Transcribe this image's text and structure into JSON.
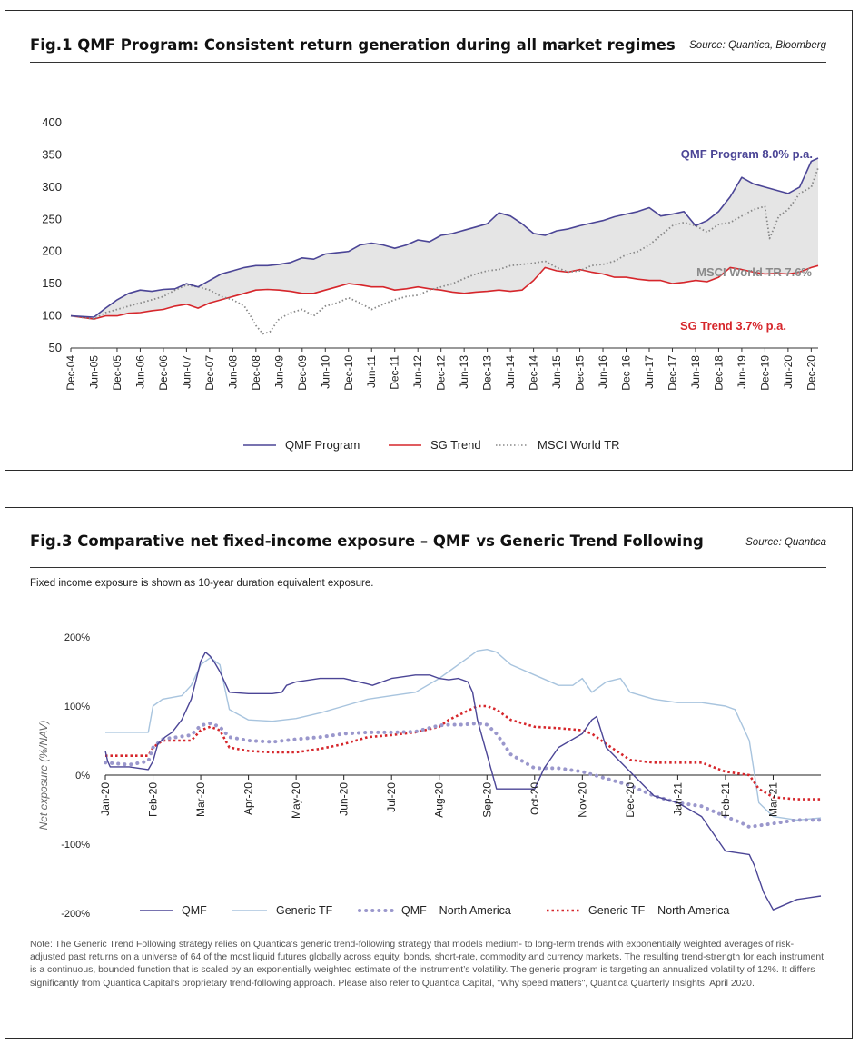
{
  "figures": [
    {
      "title": "Fig.1  QMF Program: Consistent return generation during all market regimes",
      "source": "Source: Quantica, Bloomberg"
    },
    {
      "title": "Fig.3  Comparative net fixed-income exposure – QMF vs Generic Trend Following",
      "source": "Source: Quantica",
      "subtitle": "Fixed income exposure is shown as 10-year duration equivalent exposure.",
      "note": "Note: The Generic Trend Following strategy relies on Quantica’s generic trend-following strategy that models medium- to long-term trends with exponentially weighted averages of risk-adjusted past returns on a universe of 64 of the most liquid futures globally across equity, bonds, short-rate, commodity and currency markets. The resulting trend-strength for each instrument is a continuous, bounded function that is scaled by an exponentially weighted estimate of the instrument’s volatility. The generic program is targeting an annualized volatility of 12%. It differs significantly from Quantica Capital’s proprietary trend-following approach. Please also refer to Quantica Capital, \"Why speed matters\", Quantica Quarterly Insights, April 2020."
    }
  ],
  "chart_data": [
    {
      "type": "line",
      "ylim": [
        50,
        400
      ],
      "yticks": [
        50,
        100,
        150,
        200,
        250,
        300,
        350,
        400
      ],
      "categories": [
        "Dec-04",
        "Jun-05",
        "Dec-05",
        "Jun-06",
        "Dec-06",
        "Jun-07",
        "Dec-07",
        "Jun-08",
        "Dec-08",
        "Jun-09",
        "Dec-09",
        "Jun-10",
        "Dec-10",
        "Jun-11",
        "Dec-11",
        "Jun-12",
        "Dec-12",
        "Jun-13",
        "Dec-13",
        "Jun-14",
        "Dec-14",
        "Jun-15",
        "Dec-15",
        "Jun-16",
        "Dec-16",
        "Jun-17",
        "Dec-17",
        "Jun-18",
        "Dec-18",
        "Jun-19",
        "Dec-19",
        "Jun-20",
        "Dec-20"
      ],
      "fill_between": [
        "QMF Program",
        "SG Trend"
      ],
      "colors": {
        "qmf": "#4b4596",
        "sg": "#d6262b",
        "msci": "#888888",
        "fill": "#e5e5e5"
      },
      "series": [
        {
          "name": "QMF Program",
          "x": [
            0,
            1,
            1.5,
            2,
            2.5,
            3,
            3.5,
            4,
            4.5,
            5,
            5.5,
            6,
            6.5,
            7,
            7.5,
            8,
            8.5,
            9,
            9.5,
            10,
            10.5,
            11,
            11.5,
            12,
            12.5,
            13,
            13.5,
            14,
            14.5,
            15,
            15.5,
            16,
            16.5,
            17,
            17.5,
            18,
            18.5,
            19,
            19.5,
            20,
            20.5,
            21,
            21.5,
            22,
            22.5,
            23,
            23.5,
            24,
            24.5,
            25,
            25.5,
            26,
            26.5,
            27,
            27.5,
            28,
            28.5,
            29,
            29.5,
            30,
            30.5,
            31,
            31.5,
            32,
            32.3
          ],
          "values": [
            100,
            98,
            112,
            125,
            135,
            140,
            138,
            141,
            142,
            150,
            145,
            155,
            165,
            170,
            175,
            178,
            178,
            180,
            183,
            190,
            188,
            196,
            198,
            200,
            210,
            213,
            210,
            205,
            210,
            218,
            215,
            225,
            228,
            233,
            238,
            243,
            260,
            255,
            243,
            228,
            225,
            232,
            235,
            240,
            244,
            248,
            254,
            258,
            262,
            268,
            255,
            258,
            262,
            240,
            248,
            262,
            285,
            315,
            305,
            300,
            295,
            290,
            300,
            340,
            345
          ]
        },
        {
          "name": "SG Trend",
          "x": [
            0,
            1,
            1.5,
            2,
            2.5,
            3,
            3.5,
            4,
            4.5,
            5,
            5.5,
            6,
            6.5,
            7,
            7.5,
            8,
            8.5,
            9,
            9.5,
            10,
            10.5,
            11,
            11.5,
            12,
            12.5,
            13,
            13.5,
            14,
            14.5,
            15,
            15.5,
            16,
            16.5,
            17,
            17.5,
            18,
            18.5,
            19,
            19.5,
            20,
            20.5,
            21,
            21.5,
            22,
            22.5,
            23,
            23.5,
            24,
            24.5,
            25,
            25.5,
            26,
            26.5,
            27,
            27.5,
            28,
            28.5,
            29,
            29.5,
            30,
            30.5,
            31,
            31.5,
            32,
            32.3
          ],
          "values": [
            100,
            95,
            100,
            100,
            104,
            105,
            108,
            110,
            115,
            118,
            112,
            120,
            125,
            130,
            135,
            140,
            141,
            140,
            138,
            135,
            135,
            140,
            145,
            150,
            148,
            145,
            145,
            140,
            142,
            145,
            142,
            140,
            137,
            135,
            137,
            138,
            140,
            138,
            140,
            155,
            175,
            170,
            168,
            172,
            168,
            165,
            160,
            160,
            157,
            155,
            155,
            150,
            152,
            155,
            153,
            160,
            175,
            172,
            168,
            165,
            166,
            165,
            168,
            175,
            178
          ]
        },
        {
          "name": "MSCI World TR",
          "x": [
            0,
            1,
            1.5,
            2,
            2.5,
            3,
            3.5,
            4,
            4.5,
            5,
            5.5,
            6,
            6.5,
            7,
            7.5,
            7.8,
            8,
            8.3,
            8.6,
            9,
            9.5,
            10,
            10.5,
            11,
            11.5,
            12,
            12.5,
            13,
            13.5,
            14,
            14.5,
            15,
            15.5,
            16,
            16.5,
            17,
            17.5,
            18,
            18.5,
            19,
            19.5,
            20,
            20.5,
            21,
            21.5,
            22,
            22.5,
            23,
            23.5,
            24,
            24.5,
            25,
            25.5,
            26,
            26.5,
            27,
            27.5,
            28,
            28.5,
            29,
            29.5,
            30,
            30.2,
            30.6,
            31,
            31.5,
            32,
            32.3
          ],
          "values": [
            100,
            95,
            105,
            110,
            115,
            120,
            125,
            130,
            140,
            148,
            145,
            140,
            130,
            125,
            115,
            98,
            85,
            72,
            75,
            95,
            105,
            110,
            100,
            115,
            120,
            128,
            120,
            110,
            118,
            125,
            130,
            132,
            140,
            145,
            150,
            158,
            165,
            170,
            172,
            178,
            180,
            182,
            185,
            175,
            168,
            170,
            178,
            180,
            185,
            195,
            200,
            210,
            225,
            240,
            245,
            240,
            230,
            242,
            245,
            255,
            265,
            270,
            220,
            255,
            265,
            290,
            300,
            330
          ]
        }
      ]
    },
    {
      "type": "line",
      "ylim": [
        -200,
        200
      ],
      "ytick_labels": [
        "200%",
        "100%",
        "0%",
        "-100%",
        "-200%"
      ],
      "ytick_values": [
        200,
        100,
        0,
        -100,
        -200
      ],
      "ylabel": "Net exposure (%/NAV)",
      "categories": [
        "Jan-20",
        "Feb-20",
        "Mar-20",
        "Apr-20",
        "May-20",
        "Jun-20",
        "Jul-20",
        "Aug-20",
        "Sep-20",
        "Oct-20",
        "Nov-20",
        "Dec-20",
        "Jan-21",
        "Feb-21",
        "Mar-21"
      ],
      "colors": {
        "qmf": "#4b4596",
        "generic": "#a8c4de",
        "qmf_na": "#9a97cc",
        "generic_na": "#d6262b"
      },
      "series": [
        {
          "name": "QMF",
          "x": [
            0,
            0.05,
            0.1,
            0.5,
            0.9,
            1.0,
            1.1,
            1.25,
            1.4,
            1.6,
            1.8,
            2.0,
            2.1,
            2.2,
            2.3,
            2.4,
            2.6,
            3.0,
            3.5,
            3.7,
            3.8,
            4.0,
            4.5,
            5.0,
            5.5,
            5.6,
            6.0,
            6.5,
            6.8,
            7.0,
            7.2,
            7.4,
            7.6,
            7.7,
            7.8,
            8.0,
            8.2,
            8.5,
            9.0,
            9.2,
            9.5,
            10.0,
            10.2,
            10.3,
            10.5,
            11.0,
            11.5,
            12.0,
            12.5,
            13.0,
            13.5,
            13.6,
            13.8,
            14.0,
            14.5,
            15.0
          ],
          "values": [
            35,
            20,
            12,
            12,
            8,
            20,
            45,
            55,
            62,
            80,
            110,
            165,
            178,
            172,
            162,
            150,
            120,
            118,
            118,
            120,
            130,
            135,
            140,
            140,
            132,
            130,
            140,
            145,
            145,
            140,
            138,
            140,
            135,
            120,
            80,
            30,
            -20,
            -20,
            -20,
            10,
            40,
            60,
            80,
            85,
            40,
            5,
            -30,
            -40,
            -60,
            -110,
            -115,
            -130,
            -170,
            -195,
            -180,
            -175
          ]
        },
        {
          "name": "Generic TF",
          "x": [
            0,
            0.5,
            0.9,
            1.0,
            1.2,
            1.6,
            1.8,
            2.0,
            2.2,
            2.4,
            2.6,
            3.0,
            3.5,
            4.0,
            4.5,
            5.0,
            5.5,
            6.0,
            6.5,
            7.0,
            7.2,
            7.4,
            7.6,
            7.8,
            8.0,
            8.2,
            8.5,
            9.0,
            9.5,
            9.8,
            10.0,
            10.2,
            10.5,
            10.8,
            11.0,
            11.5,
            12.0,
            12.5,
            13.0,
            13.2,
            13.5,
            13.7,
            14.0,
            14.5,
            15.0
          ],
          "values": [
            62,
            62,
            62,
            100,
            110,
            115,
            130,
            160,
            170,
            160,
            95,
            80,
            78,
            82,
            90,
            100,
            110,
            115,
            120,
            140,
            150,
            160,
            170,
            180,
            182,
            178,
            160,
            145,
            130,
            130,
            140,
            120,
            135,
            140,
            120,
            110,
            105,
            105,
            100,
            95,
            50,
            -40,
            -60,
            -65,
            -62
          ]
        },
        {
          "name": "QMF – North America",
          "x": [
            0,
            0.5,
            0.9,
            1.0,
            1.2,
            1.5,
            1.8,
            2.0,
            2.2,
            2.4,
            2.6,
            3.0,
            3.5,
            4.0,
            4.5,
            5.0,
            5.5,
            6.0,
            6.5,
            7.0,
            7.2,
            7.5,
            7.8,
            8.0,
            8.2,
            8.5,
            9.0,
            9.5,
            10.0,
            10.5,
            11.0,
            11.5,
            12.0,
            12.5,
            13.0,
            13.3,
            13.5,
            14.0,
            14.5,
            15.0
          ],
          "values": [
            18,
            15,
            20,
            40,
            52,
            55,
            58,
            72,
            75,
            70,
            55,
            50,
            48,
            52,
            55,
            60,
            62,
            62,
            63,
            72,
            73,
            73,
            75,
            73,
            60,
            30,
            10,
            10,
            5,
            -5,
            -15,
            -30,
            -40,
            -45,
            -60,
            -68,
            -75,
            -70,
            -65,
            -65
          ]
        },
        {
          "name": "Generic TF – North America",
          "x": [
            0,
            0.5,
            0.9,
            1.0,
            1.2,
            1.5,
            1.8,
            2.0,
            2.2,
            2.4,
            2.6,
            3.0,
            3.5,
            4.0,
            4.5,
            5.0,
            5.5,
            6.0,
            6.5,
            7.0,
            7.2,
            7.5,
            7.8,
            8.0,
            8.2,
            8.5,
            9.0,
            9.5,
            10.0,
            10.2,
            10.5,
            11.0,
            11.5,
            12.0,
            12.5,
            13.0,
            13.2,
            13.5,
            13.7,
            14.0,
            14.5,
            15.0
          ],
          "values": [
            28,
            28,
            28,
            40,
            50,
            50,
            50,
            65,
            70,
            65,
            40,
            35,
            33,
            33,
            38,
            45,
            55,
            58,
            62,
            70,
            80,
            90,
            100,
            100,
            95,
            80,
            70,
            68,
            65,
            60,
            45,
            22,
            18,
            18,
            18,
            5,
            3,
            0,
            -20,
            -32,
            -35,
            -35
          ]
        }
      ]
    }
  ]
}
